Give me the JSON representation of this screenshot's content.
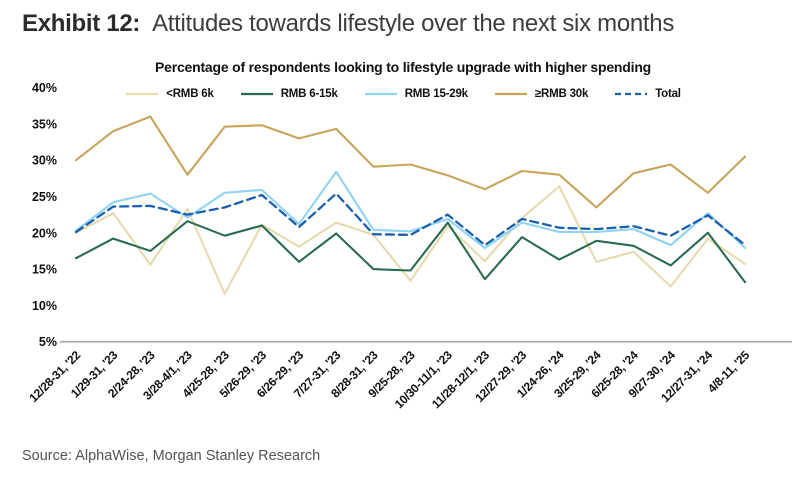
{
  "header": {
    "exhibit_label": "Exhibit 12:",
    "title": "Attitudes towards lifestyle over the next six months"
  },
  "footer": {
    "source": "Source: AlphaWise, Morgan Stanley Research"
  },
  "chart_data": {
    "type": "line",
    "title": "Percentage of respondents looking to lifestyle upgrade with higher spending",
    "xlabel": "",
    "ylabel": "",
    "ylim": [
      5,
      40
    ],
    "yticks": [
      "5%",
      "10%",
      "15%",
      "20%",
      "25%",
      "30%",
      "35%",
      "40%"
    ],
    "ytick_values": [
      5,
      10,
      15,
      20,
      25,
      30,
      35,
      40
    ],
    "grid": false,
    "legend_position": "top",
    "axis_line_color": "#a6a6a6",
    "categories": [
      "12/28-31, '22",
      "1/29-31, '23",
      "2/24-28, '23",
      "3/28-4/1, '23",
      "4/25-28, '23",
      "5/26-29, '23",
      "6/26-29, '23",
      "7/27-31, '23",
      "8/28-31, '23",
      "9/25-28, '23",
      "10/30-11/1, '23",
      "11/28-12/1, '23",
      "12/27-29, '23",
      "1/24-26, '24",
      "3/25-29, '24",
      "6/25-28, '24",
      "9/27-30, '24",
      "12/27-31, '24",
      "4/8-11, '25"
    ],
    "series": [
      {
        "name": "<RMB 6k",
        "color": "#e7dab0",
        "dashed": false,
        "values": [
          20.0,
          22.7,
          15.6,
          23.3,
          11.6,
          21.1,
          18.1,
          21.4,
          19.7,
          13.4,
          20.9,
          16.1,
          22.0,
          26.4,
          16.0,
          17.4,
          12.6,
          19.2,
          15.7
        ]
      },
      {
        "name": "RMB 6-15k",
        "color": "#2a6b50",
        "dashed": false,
        "values": [
          16.5,
          19.2,
          17.5,
          21.6,
          19.6,
          21.0,
          16.0,
          19.9,
          15.0,
          14.8,
          21.4,
          13.6,
          19.4,
          16.3,
          18.9,
          18.2,
          15.5,
          20.0,
          13.2
        ]
      },
      {
        "name": "RMB 15-29k",
        "color": "#8fd2f2",
        "dashed": false,
        "values": [
          20.3,
          24.2,
          25.4,
          22.1,
          25.5,
          25.9,
          21.2,
          28.4,
          20.4,
          20.2,
          21.9,
          17.9,
          21.4,
          20.1,
          20.1,
          20.5,
          18.3,
          22.7,
          17.9
        ]
      },
      {
        "name": "≥RMB 30k",
        "color": "#c7a45a",
        "dashed": false,
        "values": [
          30.0,
          34.0,
          36.0,
          28.0,
          34.6,
          34.8,
          33.0,
          34.3,
          29.1,
          29.4,
          27.9,
          26.0,
          28.5,
          28.0,
          23.5,
          28.2,
          29.4,
          25.5,
          30.5
        ]
      },
      {
        "name": "Total",
        "color": "#1b5fae",
        "dashed": true,
        "values": [
          20.1,
          23.6,
          23.7,
          22.5,
          23.5,
          25.2,
          20.8,
          25.4,
          19.8,
          19.7,
          22.5,
          18.3,
          21.9,
          20.7,
          20.5,
          20.9,
          19.6,
          22.4,
          18.3
        ]
      }
    ]
  }
}
